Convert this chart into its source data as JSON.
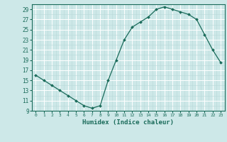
{
  "x": [
    0,
    1,
    2,
    3,
    4,
    5,
    6,
    7,
    8,
    9,
    10,
    11,
    12,
    13,
    14,
    15,
    16,
    17,
    18,
    19,
    20,
    21,
    22,
    23
  ],
  "y": [
    16,
    15,
    14,
    13,
    12,
    11,
    10,
    9.5,
    10,
    15,
    19,
    23,
    25.5,
    26.5,
    27.5,
    29,
    29.5,
    29,
    28.5,
    28,
    27,
    24,
    21,
    18.5
  ],
  "xlim": [
    -0.5,
    23.5
  ],
  "ylim": [
    9,
    30
  ],
  "yticks": [
    9,
    11,
    13,
    15,
    17,
    19,
    21,
    23,
    25,
    27,
    29
  ],
  "xticks": [
    0,
    1,
    2,
    3,
    4,
    5,
    6,
    7,
    8,
    9,
    10,
    11,
    12,
    13,
    14,
    15,
    16,
    17,
    18,
    19,
    20,
    21,
    22,
    23
  ],
  "xlabel": "Humidex (Indice chaleur)",
  "line_color": "#1a6b5a",
  "marker_color": "#1a6b5a",
  "bg_color": "#cde8e8",
  "grid_major_color": "#ffffff",
  "grid_minor_color": "#b8d8d8"
}
